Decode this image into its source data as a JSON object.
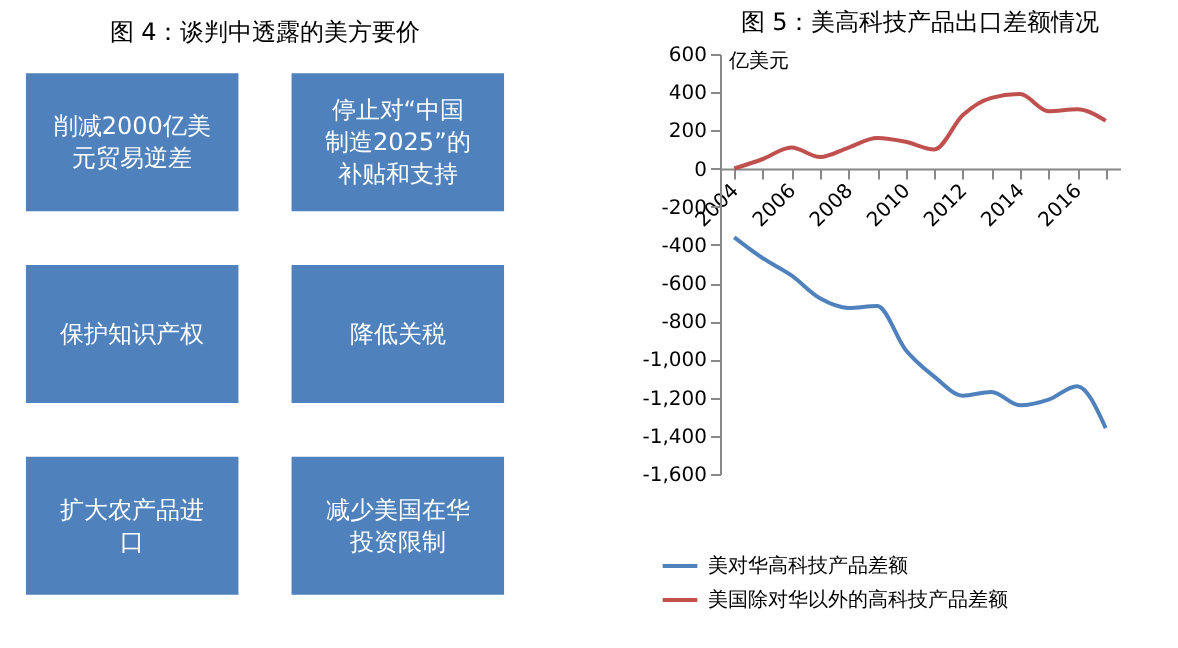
{
  "chart_data": [
    {
      "type": "other",
      "title": "图 4：谈判中透露的美方要价",
      "color": "#4f81bd",
      "annotations": [
        "削减2000亿美元贸易逆差",
        "停止对“中国制造2025”的补贴和支持",
        "保护知识产权",
        "降低关税",
        "扩大农产品进口",
        "减少美国在华投资限制"
      ]
    },
    {
      "type": "line",
      "title": "图 5：美高科技产品出口差额情况",
      "ylabel": "亿美元",
      "x": [
        2004,
        2005,
        2006,
        2007,
        2008,
        2009,
        2010,
        2011,
        2012,
        2013,
        2014,
        2015,
        2016,
        2017
      ],
      "series": [
        {
          "name": "美对华高科技产品差额",
          "color": "#4f81bd",
          "values": [
            -360,
            -470,
            -560,
            -680,
            -730,
            -720,
            -950,
            -1090,
            -1190,
            -1170,
            -1240,
            -1210,
            -1140,
            -1360
          ]
        },
        {
          "name": "美国除对华以外的高科技产品差额",
          "color": "#c0504d",
          "values": [
            0,
            50,
            110,
            60,
            110,
            160,
            140,
            100,
            280,
            370,
            390,
            300,
            310,
            250
          ]
        }
      ],
      "xlim": [
        2003.5,
        2017.5
      ],
      "xticks": [
        2004,
        {
          "value": 2005,
          "label": null
        },
        2006,
        {
          "value": 2007,
          "label": null
        },
        2008,
        {
          "value": 2009,
          "label": null
        },
        2010,
        {
          "value": 2011,
          "label": null
        },
        2012,
        {
          "value": 2013,
          "label": null
        },
        2014,
        {
          "value": 2015,
          "label": null
        },
        2016,
        {
          "value": 2017,
          "label": null
        }
      ],
      "ylim": [
        -1600,
        600
      ],
      "yticks": [
        600,
        400,
        200,
        0,
        -200,
        -400,
        -600,
        -800,
        {
          "value": -1000,
          "label": "-1,000"
        },
        {
          "value": -1200,
          "label": "-1,200"
        },
        {
          "value": -1400,
          "label": "-1,400"
        },
        {
          "value": -1600,
          "label": "-1,600"
        }
      ],
      "grid": false,
      "legend": "bottom",
      "line_style": "solid",
      "marker": "none"
    }
  ]
}
